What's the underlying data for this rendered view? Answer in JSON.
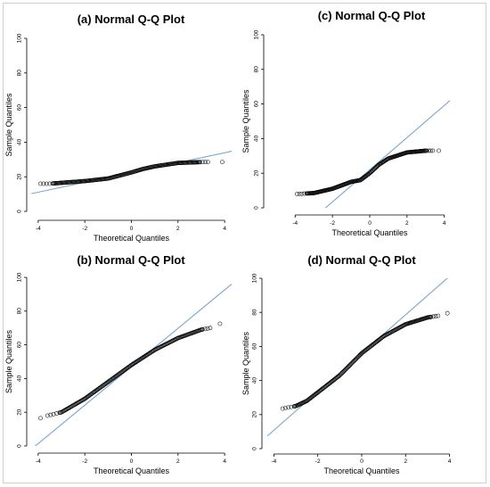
{
  "chart_data": [
    {
      "type": "scatter",
      "panel": "a",
      "title": "(a) Normal Q-Q Plot",
      "xlabel": "Theoretical Quantiles",
      "ylabel": "Sample Quantiles",
      "xticks": [
        -4,
        -2,
        0,
        2,
        4
      ],
      "yticks": [
        0,
        20,
        40,
        60,
        80,
        100
      ],
      "xlim": [
        -4.3,
        4.3
      ],
      "ylim": [
        0,
        100
      ],
      "reference_line": {
        "slope": 2.85,
        "intercept": 22.5
      },
      "quantile_curve": [
        [
          -3.9,
          16
        ],
        [
          -3.5,
          16
        ],
        [
          -3.0,
          16.5
        ],
        [
          -2.0,
          17.5
        ],
        [
          -1.0,
          19
        ],
        [
          0.0,
          22.5
        ],
        [
          0.5,
          24.5
        ],
        [
          1.0,
          26
        ],
        [
          2.0,
          28
        ],
        [
          3.0,
          28.5
        ],
        [
          3.3,
          28.5
        ]
      ],
      "outliers": [
        [
          3.9,
          28.5
        ]
      ]
    },
    {
      "type": "scatter",
      "panel": "b",
      "title": "(b) Normal Q-Q Plot",
      "xlabel": "Theoretical Quantiles",
      "ylabel": "Sample Quantiles",
      "xticks": [
        -4,
        -2,
        0,
        2,
        4
      ],
      "yticks": [
        0,
        20,
        40,
        60,
        80,
        100
      ],
      "xlim": [
        -4.3,
        4.3
      ],
      "ylim": [
        0,
        100
      ],
      "reference_line": {
        "slope": 11.4,
        "intercept": 47
      },
      "quantile_curve": [
        [
          -3.6,
          18
        ],
        [
          -3.0,
          20
        ],
        [
          -2.0,
          28
        ],
        [
          -1.0,
          38
        ],
        [
          0.0,
          48
        ],
        [
          1.0,
          57
        ],
        [
          2.0,
          64
        ],
        [
          3.0,
          69
        ],
        [
          3.4,
          70
        ]
      ],
      "outliers": [
        [
          -3.9,
          16.5
        ],
        [
          3.8,
          72.5
        ]
      ]
    },
    {
      "type": "scatter",
      "panel": "c",
      "title": "(c) Normal Q-Q Plot",
      "xlabel": "Theoretical Quantiles",
      "ylabel": "Sample Quantiles",
      "xticks": [
        -4,
        -2,
        0,
        2,
        4
      ],
      "yticks": [
        0,
        20,
        40,
        60,
        80,
        100
      ],
      "xlim": [
        -4.3,
        4.3
      ],
      "ylim": [
        0,
        100
      ],
      "reference_line": {
        "slope": 9.3,
        "intercept": 22
      },
      "quantile_curve": [
        [
          -3.9,
          8
        ],
        [
          -3.0,
          8.5
        ],
        [
          -2.0,
          11
        ],
        [
          -1.0,
          15
        ],
        [
          -0.5,
          16
        ],
        [
          0.0,
          20
        ],
        [
          0.5,
          25
        ],
        [
          1.0,
          28.5
        ],
        [
          2.0,
          32
        ],
        [
          3.0,
          33
        ],
        [
          3.4,
          33
        ]
      ],
      "outliers": [
        [
          3.7,
          33
        ]
      ]
    },
    {
      "type": "scatter",
      "panel": "d",
      "title": "(d) Normal Q-Q Plot",
      "xlabel": "Theoretical Quantiles",
      "ylabel": "Sample Quantiles",
      "xticks": [
        -4,
        -2,
        0,
        2,
        4
      ],
      "yticks": [
        0,
        20,
        40,
        60,
        80,
        100
      ],
      "xlim": [
        -4.3,
        4.3
      ],
      "ylim": [
        0,
        100
      ],
      "reference_line": {
        "slope": 11.3,
        "intercept": 56
      },
      "quantile_curve": [
        [
          -3.6,
          23.5
        ],
        [
          -3.0,
          25
        ],
        [
          -2.5,
          28
        ],
        [
          -2.0,
          33
        ],
        [
          -1.0,
          43
        ],
        [
          0.0,
          56
        ],
        [
          1.0,
          66
        ],
        [
          2.0,
          73
        ],
        [
          3.0,
          77
        ],
        [
          3.5,
          78
        ]
      ],
      "outliers": [
        [
          3.9,
          79.5
        ]
      ]
    }
  ]
}
